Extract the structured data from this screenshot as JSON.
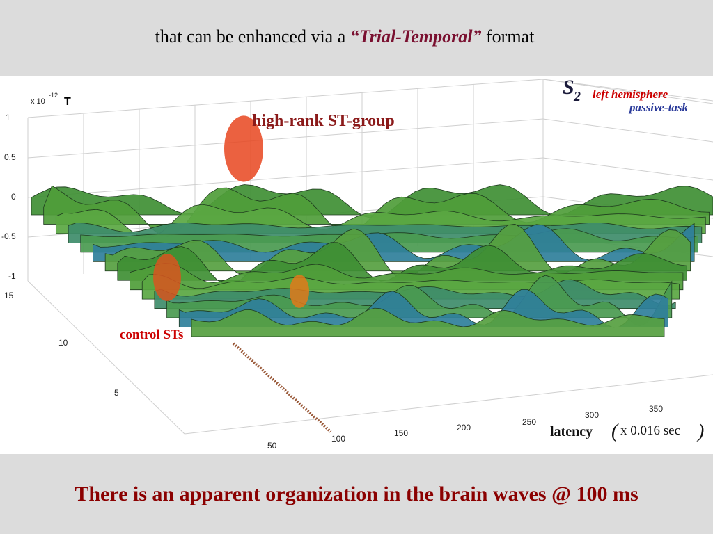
{
  "header": {
    "text_before": "that can be enhanced  via a ",
    "emphasis": "“Trial-Temporal”",
    "text_after": "  format"
  },
  "footer": {
    "text": "There is an apparent organization in the brain waves @ 100 ms"
  },
  "chart_data": {
    "type": "surface",
    "title": "",
    "scale_label": "x 10",
    "scale_exponent": "-12",
    "unit": "T",
    "z_ticks": [
      "1",
      "0.5",
      "0",
      "-0.5",
      "-1"
    ],
    "zlim": [
      -1,
      1
    ],
    "y_ticks": [
      "15",
      "10",
      "5"
    ],
    "x_ticks": [
      "50",
      "100",
      "150",
      "200",
      "250",
      "300",
      "350"
    ],
    "xlabel_main": "latency",
    "xlabel_paren_open": "(",
    "xlabel_unit": "x 0.016 sec",
    "xlabel_paren_close": ")",
    "grid": true,
    "annotations": {
      "high_rank": "high-rank ST-group",
      "control": "control STs",
      "subject": "S",
      "subject_sub": "2",
      "hemisphere": "left hemisphere",
      "task": "passive-task"
    },
    "colors": {
      "annotation_red": "#8b1a1a",
      "control_red": "#cc0000",
      "hemisphere_red": "#cc0000",
      "task_blue": "#2a3a9a",
      "surface_green": "#4f9d3a"
    }
  }
}
